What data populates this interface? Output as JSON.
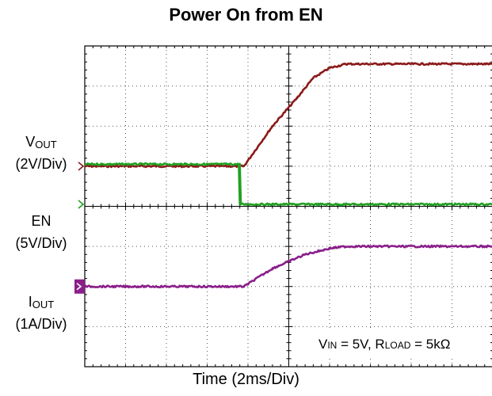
{
  "chart_data": {
    "type": "line",
    "title": "Power On from EN",
    "xlabel": "Time (2ms/Div)",
    "x_divisions": 10,
    "y_divisions": 8,
    "grid": true,
    "annotation": {
      "vin_sym": "V",
      "vin_sub": "IN",
      "vin_val": " = 5V, ",
      "rload_sym": "R",
      "rload_sub": "LOAD",
      "rload_val": " = 5kΩ"
    },
    "channels": [
      {
        "name_main": "V",
        "name_sub": "OUT",
        "scale": "(2V/Div)",
        "color": "#8b1a1a",
        "ref_division": 3.0,
        "unit_per_div": 2,
        "unit": "V",
        "points": [
          [
            0,
            0
          ],
          [
            3.9,
            0
          ],
          [
            4.6,
            1.0
          ],
          [
            5.2,
            1.7
          ],
          [
            5.6,
            2.2
          ],
          [
            6.0,
            2.45
          ],
          [
            6.4,
            2.55
          ],
          [
            10,
            2.55
          ]
        ]
      },
      {
        "name_main": "EN",
        "name_sub": "",
        "scale": "(5V/Div)",
        "color": "#22a022",
        "ref_division": 3.95,
        "unit_per_div": 5,
        "unit": "V",
        "points": [
          [
            0,
            1.0
          ],
          [
            3.8,
            1.0
          ],
          [
            3.8,
            0
          ],
          [
            10,
            0
          ]
        ]
      },
      {
        "name_main": "I",
        "name_sub": "OUT",
        "scale": "(1A/Div)",
        "color": "#8a1f8a",
        "ref_division": 6.0,
        "unit_per_div": 1,
        "unit": "A",
        "points": [
          [
            0,
            0
          ],
          [
            3.9,
            0
          ],
          [
            4.6,
            0.45
          ],
          [
            5.4,
            0.8
          ],
          [
            6.0,
            0.95
          ],
          [
            6.4,
            1.0
          ],
          [
            10,
            1.0
          ]
        ]
      }
    ]
  }
}
